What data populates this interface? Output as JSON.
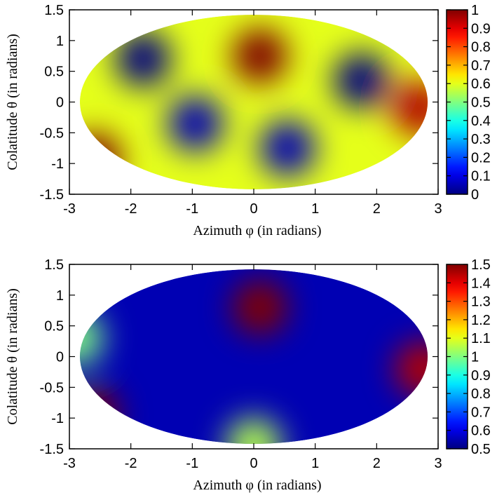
{
  "chart_data": [
    {
      "type": "heatmap",
      "projection": "mollweide-ellipse",
      "xlabel": "Azimuth φ (in radians)",
      "ylabel": "Colatitude θ (in radians)",
      "xlim": [
        -3,
        3
      ],
      "ylim": [
        -1.5,
        1.5
      ],
      "xticks": [
        "-3",
        "-2",
        "-1",
        "0",
        "1",
        "2",
        "3"
      ],
      "yticks": [
        "-1.5",
        "-1",
        "-0.5",
        "0",
        "0.5",
        "1",
        "1.5"
      ],
      "colorbar": {
        "range": [
          0,
          1
        ],
        "ticks": [
          "0",
          "0.1",
          "0.2",
          "0.3",
          "0.4",
          "0.5",
          "0.6",
          "0.7",
          "0.8",
          "0.9",
          "1"
        ]
      },
      "background_value": 0.6,
      "features": [
        {
          "phi": 0.1,
          "theta": 0.75,
          "value": 1.0
        },
        {
          "phi": -2.6,
          "theta": -0.95,
          "value": 1.0
        },
        {
          "phi": 2.7,
          "theta": -0.1,
          "value": 0.95
        },
        {
          "phi": -1.8,
          "theta": 0.7,
          "value": 0.0
        },
        {
          "phi": -0.95,
          "theta": -0.35,
          "value": 0.05
        },
        {
          "phi": 0.55,
          "theta": -0.75,
          "value": 0.05
        },
        {
          "phi": 1.75,
          "theta": 0.35,
          "value": 0.0
        }
      ]
    },
    {
      "type": "heatmap",
      "projection": "mollweide-ellipse",
      "xlabel": "Azimuth φ (in radians)",
      "ylabel": "Colatitude θ (in radians)",
      "xlim": [
        -3,
        3
      ],
      "ylim": [
        -1.5,
        1.5
      ],
      "xticks": [
        "-3",
        "-2",
        "-1",
        "0",
        "1",
        "2",
        "3"
      ],
      "yticks": [
        "-1.5",
        "-1",
        "-0.5",
        "0",
        "0.5",
        "1",
        "1.5"
      ],
      "colorbar": {
        "range": [
          0.5,
          1.5
        ],
        "ticks": [
          "0.5",
          "0.6",
          "0.7",
          "0.8",
          "0.9",
          "1",
          "1.1",
          "1.2",
          "1.3",
          "1.4",
          "1.5"
        ]
      },
      "background_value": 0.55,
      "features": [
        {
          "phi": 0.1,
          "theta": 0.8,
          "value": 1.5
        },
        {
          "phi": -2.65,
          "theta": -0.95,
          "value": 1.5
        },
        {
          "phi": 2.75,
          "theta": -0.2,
          "value": 1.45
        },
        {
          "phi": 0.0,
          "theta": -1.45,
          "value": 1.05
        },
        {
          "phi": -2.9,
          "theta": 0.3,
          "value": 1.0
        }
      ]
    }
  ]
}
